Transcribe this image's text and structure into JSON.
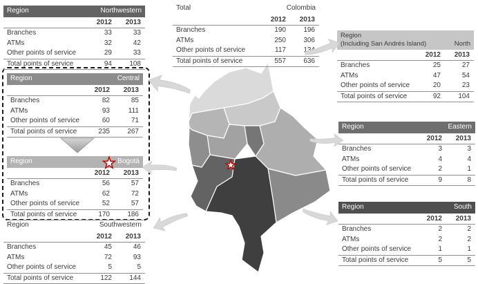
{
  "chart_data": {
    "type": "table",
    "row_labels": [
      "Branches",
      "ATMs",
      "Other points of service",
      "Total points of service"
    ],
    "tables": {
      "northwestern": {
        "header": {
          "left": "Region",
          "right": "Northwestern"
        },
        "years": [
          "2012",
          "2013"
        ],
        "rows": [
          [
            "Branches",
            33,
            33
          ],
          [
            "ATMs",
            32,
            42
          ],
          [
            "Other points of service",
            29,
            33
          ],
          [
            "Total points of service",
            94,
            108
          ]
        ]
      },
      "central": {
        "header": {
          "left": "Region",
          "right": "Central"
        },
        "years": [
          "2012",
          "2013"
        ],
        "rows": [
          [
            "Branches",
            82,
            85
          ],
          [
            "ATMs",
            93,
            111
          ],
          [
            "Other points of service",
            60,
            71
          ],
          [
            "Total points of service",
            235,
            267
          ]
        ]
      },
      "bogota": {
        "header": {
          "left": "Region",
          "right": "Bogotá"
        },
        "years": [
          "2012",
          "2013"
        ],
        "rows": [
          [
            "Branches",
            56,
            57
          ],
          [
            "ATMs",
            62,
            72
          ],
          [
            "Other points of service",
            52,
            57
          ],
          [
            "Total points of service",
            170,
            186
          ]
        ]
      },
      "southwestern": {
        "header": {
          "left": "Region",
          "right": "Southwestern"
        },
        "years": [
          "2012",
          "2013"
        ],
        "rows": [
          [
            "Branches",
            45,
            46
          ],
          [
            "ATMs",
            72,
            93
          ],
          [
            "Other points of service",
            5,
            5
          ],
          [
            "Total points of service",
            122,
            144
          ]
        ]
      },
      "total": {
        "header": {
          "left": "Total",
          "right": "Colombia"
        },
        "years": [
          "2012",
          "2013"
        ],
        "rows": [
          [
            "Branches",
            190,
            196
          ],
          [
            "ATMs",
            250,
            306
          ],
          [
            "Other points of service",
            117,
            134
          ],
          [
            "Total points of service",
            557,
            636
          ]
        ]
      },
      "north": {
        "header": {
          "left": "Region",
          "sub": "(Including San Andrés Island)",
          "right": "North"
        },
        "years": [
          "2012",
          "2013"
        ],
        "rows": [
          [
            "Branches",
            25,
            27
          ],
          [
            "ATMs",
            47,
            54
          ],
          [
            "Other points of service",
            20,
            23
          ],
          [
            "Total points of service",
            92,
            104
          ]
        ]
      },
      "eastern": {
        "header": {
          "left": "Region",
          "right": "Eastern"
        },
        "years": [
          "2012",
          "2013"
        ],
        "rows": [
          [
            "Branches",
            3,
            3
          ],
          [
            "ATMs",
            4,
            4
          ],
          [
            "Other points of service",
            2,
            1
          ],
          [
            "Total points of service",
            9,
            8
          ]
        ]
      },
      "south": {
        "header": {
          "left": "Region",
          "right": "South"
        },
        "years": [
          "2012",
          "2013"
        ],
        "rows": [
          [
            "Branches",
            2,
            2
          ],
          [
            "ATMs",
            2,
            2
          ],
          [
            "Other points of service",
            1,
            1
          ],
          [
            "Total points of service",
            5,
            5
          ]
        ]
      }
    }
  },
  "icons": {
    "capital_star": "☆",
    "down_arrow": "▼",
    "flow_arrow": "➤"
  },
  "colors": {
    "header_northwestern": "#636363",
    "header_central": "#8c8c8c",
    "header_bogota": "#b3b3b3",
    "header_north": "#c6c6c6",
    "header_eastern": "#6e6e6e",
    "header_south": "#4f4f4f",
    "star_red": "#c00000",
    "dashed_border": "#1a1a1a",
    "arrow_gray": "#d8d8d8",
    "map_shades": [
      "#dadada",
      "#c9c9c9",
      "#b5b5b5",
      "#aeaeae",
      "#a2a2a2",
      "#8e8e8e",
      "#8a8a8a",
      "#767676",
      "#636363",
      "#3f3f3f"
    ]
  }
}
